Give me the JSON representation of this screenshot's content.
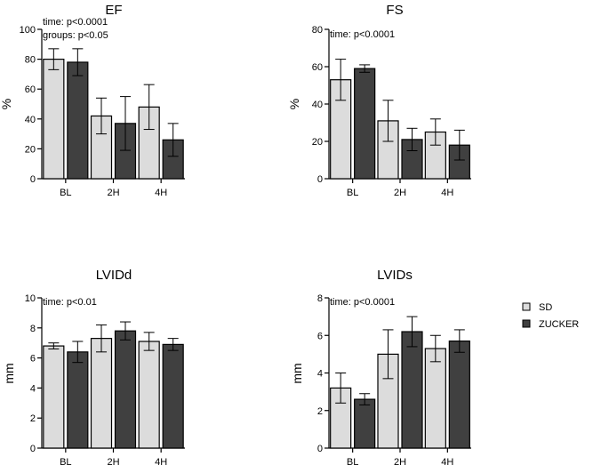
{
  "legend": {
    "series": [
      {
        "name": "SD",
        "color": "#dcdcdc"
      },
      {
        "name": "ZUCKER",
        "color": "#404040"
      }
    ]
  },
  "chart_data": [
    {
      "type": "bar",
      "title": "EF",
      "ylabel": "%",
      "ylim": [
        0,
        100
      ],
      "yticks": [
        0,
        20,
        40,
        60,
        80,
        100
      ],
      "categories": [
        "BL",
        "2H",
        "4H"
      ],
      "annotations": [
        "time: p<0.0001",
        "groups: p<0.05"
      ],
      "series": [
        {
          "name": "SD",
          "values": [
            80,
            42,
            48
          ],
          "errors": [
            7,
            12,
            15
          ]
        },
        {
          "name": "ZUCKER",
          "values": [
            78,
            37,
            26
          ],
          "errors": [
            9,
            18,
            11
          ]
        }
      ]
    },
    {
      "type": "bar",
      "title": "FS",
      "ylabel": "%",
      "ylim": [
        0,
        80
      ],
      "yticks": [
        0,
        20,
        40,
        60,
        80
      ],
      "categories": [
        "BL",
        "2H",
        "4H"
      ],
      "annotations": [
        "time: p<0.0001"
      ],
      "series": [
        {
          "name": "SD",
          "values": [
            53,
            31,
            25
          ],
          "errors": [
            11,
            11,
            7
          ]
        },
        {
          "name": "ZUCKER",
          "values": [
            59,
            21,
            18
          ],
          "errors": [
            2,
            6,
            8
          ]
        }
      ]
    },
    {
      "type": "bar",
      "title": "LVIDd",
      "ylabel": "mm",
      "ylim": [
        0,
        10
      ],
      "yticks": [
        0,
        2,
        4,
        6,
        8,
        10
      ],
      "categories": [
        "BL",
        "2H",
        "4H"
      ],
      "annotations": [
        "time: p<0.01"
      ],
      "series": [
        {
          "name": "SD",
          "values": [
            6.8,
            7.3,
            7.1
          ],
          "errors": [
            0.2,
            0.9,
            0.6
          ]
        },
        {
          "name": "ZUCKER",
          "values": [
            6.4,
            7.8,
            6.9
          ],
          "errors": [
            0.7,
            0.6,
            0.4
          ]
        }
      ]
    },
    {
      "type": "bar",
      "title": "LVIDs",
      "ylabel": "mm",
      "ylim": [
        0,
        8
      ],
      "yticks": [
        0,
        2,
        4,
        6,
        8
      ],
      "categories": [
        "BL",
        "2H",
        "4H"
      ],
      "annotations": [
        "time: p<0.0001"
      ],
      "series": [
        {
          "name": "SD",
          "values": [
            3.2,
            5.0,
            5.3
          ],
          "errors": [
            0.8,
            1.3,
            0.7
          ]
        },
        {
          "name": "ZUCKER",
          "values": [
            2.6,
            6.2,
            5.7
          ],
          "errors": [
            0.3,
            0.8,
            0.6
          ]
        }
      ]
    }
  ]
}
